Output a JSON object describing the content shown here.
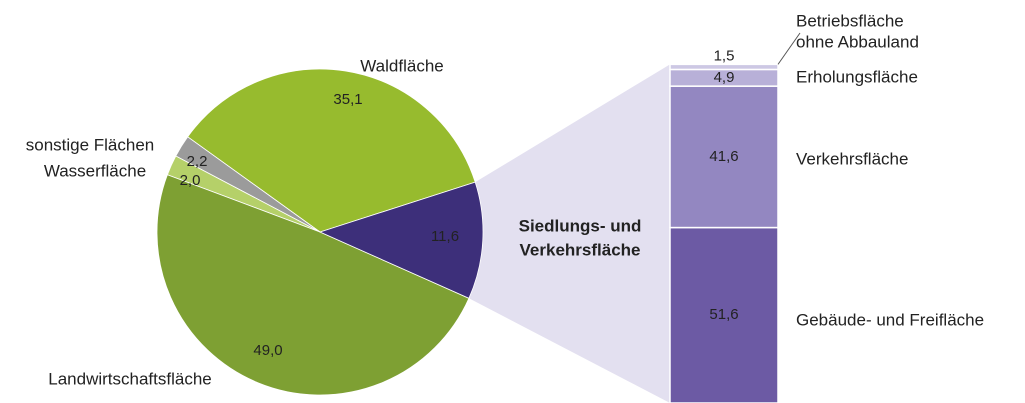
{
  "chart_data": [
    {
      "type": "pie",
      "categories": [
        "Waldfläche",
        "sonstige Flächen",
        "Wasserfläche",
        "Landwirtschaftsfläche",
        [
          "Siedlungs- und",
          "Verkehrsfläche"
        ]
      ],
      "values": [
        35.1,
        2.2,
        2.0,
        49.0,
        11.6
      ],
      "value_labels": [
        "35,1",
        "2,2",
        "2,0",
        "49,0",
        "11,6"
      ],
      "colors": [
        "#97bb2e",
        "#9b9b9b",
        "#b5d069",
        "#7ea033",
        "#3d2f7a"
      ]
    },
    {
      "type": "stacked-bar",
      "categories": [
        "Gebäude- und Freifläche",
        "Verkehrsfläche",
        "Erholungsfläche",
        [
          "Betriebsfläche",
          "ohne Abbauland"
        ]
      ],
      "values": [
        51.6,
        41.6,
        4.9,
        1.5
      ],
      "value_labels": [
        "51,6",
        "41,6",
        "4,9",
        "1,5"
      ],
      "colors": [
        "#6c5aa4",
        "#9387c1",
        "#b8b0d8",
        "#cdc8e4"
      ]
    }
  ]
}
